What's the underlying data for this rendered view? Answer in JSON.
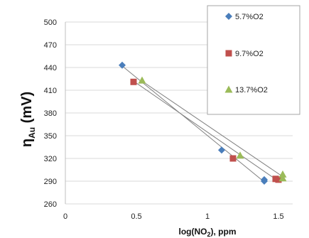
{
  "chart_data": {
    "type": "scatter",
    "xlabel": "log(NO",
    "xlabel_sub": "2",
    "xlabel_suffix": "), ppm",
    "ylabel": "η",
    "ylabel_sub": "Au",
    "ylabel_suffix": " (mV)",
    "xlim": [
      0,
      1.6
    ],
    "ylim": [
      260,
      500
    ],
    "x_ticks": [
      "0",
      "0.5",
      "1",
      "1.5"
    ],
    "x_tick_values": [
      0,
      0.5,
      1,
      1.5
    ],
    "y_ticks": [
      "260",
      "290",
      "320",
      "350",
      "380",
      "410",
      "440",
      "470",
      "500"
    ],
    "y_tick_values": [
      260,
      290,
      320,
      350,
      380,
      410,
      440,
      470,
      500
    ],
    "grid": "horizontal",
    "legend_position": "top-right",
    "series": [
      {
        "name": "5.7%O2",
        "marker": "diamond",
        "color": "#4a7ebb",
        "points": [
          [
            0.4,
            443
          ],
          [
            1.1,
            331
          ],
          [
            1.4,
            292
          ],
          [
            1.4,
            290
          ]
        ],
        "trendline": [
          [
            0.4,
            442
          ],
          [
            1.4,
            289
          ]
        ]
      },
      {
        "name": "9.7%O2",
        "marker": "square",
        "color": "#c0504d",
        "points": [
          [
            0.48,
            421
          ],
          [
            1.18,
            320
          ],
          [
            1.48,
            293
          ],
          [
            1.5,
            292
          ]
        ],
        "trendline": [
          [
            0.48,
            422
          ],
          [
            1.5,
            290
          ]
        ]
      },
      {
        "name": "13.7%O2",
        "marker": "triangle",
        "color": "#9bbb59",
        "points": [
          [
            0.54,
            423
          ],
          [
            1.23,
            324
          ],
          [
            1.53,
            299
          ],
          [
            1.53,
            294
          ]
        ],
        "trendline": [
          [
            0.54,
            422
          ],
          [
            1.53,
            296
          ]
        ]
      }
    ]
  }
}
